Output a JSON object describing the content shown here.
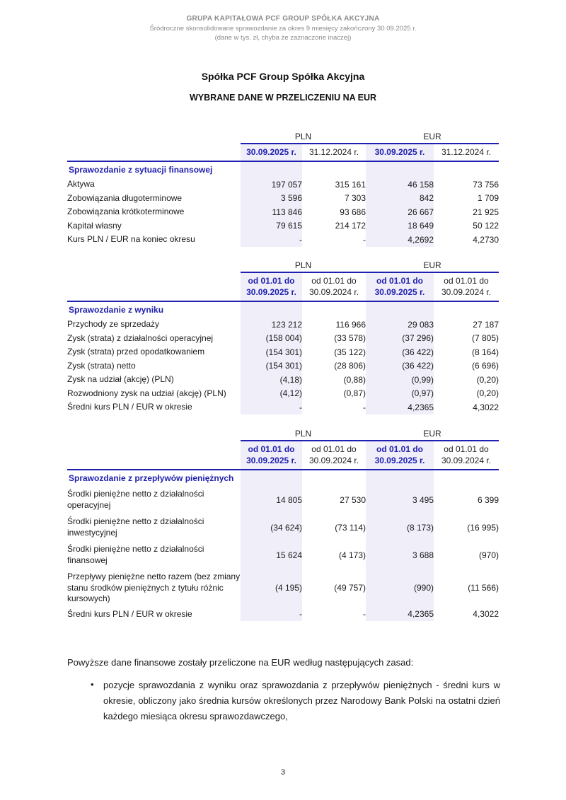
{
  "page": {
    "header": {
      "line1": "GRUPA KAPITAŁOWA PCF GROUP SPÓŁKA AKCYJNA",
      "line2": "Śródroczne skonsolidowane sprawozdanie za okres 9 miesięcy zakończony 30.09.2025 r.",
      "line3": "(dane w tys. zł, chyba że zaznaczone inaczej)"
    },
    "title": "Spółka PCF Group Spółka Akcyjna",
    "subtitle": "WYBRANE DANE W PRZELICZENIU NA EUR",
    "page_number": "3"
  },
  "colors": {
    "accent_navy": "#2020b0",
    "highlight_lavender": "#efeef9",
    "header_gray": "#8a8a8a"
  },
  "tables": [
    {
      "currency_groups": [
        "PLN",
        "EUR"
      ],
      "col_headers": [
        "30.09.2025 r.",
        "31.12.2024 r.",
        "30.09.2025 r.",
        "31.12.2024 r."
      ],
      "section": "Sprawozdanie z sytuacji finansowej",
      "rows": [
        {
          "label": "Aktywa",
          "values": [
            "197 057",
            "315 161",
            "46 158",
            "73 756"
          ]
        },
        {
          "label": "Zobowiązania długoterminowe",
          "values": [
            "3 596",
            "7 303",
            "842",
            "1 709"
          ]
        },
        {
          "label": "Zobowiązania krótkoterminowe",
          "values": [
            "113 846",
            "93 686",
            "26 667",
            "21 925"
          ]
        },
        {
          "label": "Kapitał własny",
          "values": [
            "79 615",
            "214 172",
            "18 649",
            "50 122"
          ]
        },
        {
          "label": "Kurs PLN / EUR na koniec okresu",
          "values": [
            "-",
            "-",
            "4,2692",
            "4,2730"
          ]
        }
      ]
    },
    {
      "currency_groups": [
        "PLN",
        "EUR"
      ],
      "col_headers": [
        "od 01.01 do 30.09.2025 r.",
        "od 01.01 do 30.09.2024 r.",
        "od 01.01 do 30.09.2025 r.",
        "od 01.01 do 30.09.2024 r."
      ],
      "section": "Sprawozdanie z wyniku",
      "rows": [
        {
          "label": "Przychody ze sprzedaży",
          "values": [
            "123 212",
            "116 966",
            "29 083",
            "27 187"
          ]
        },
        {
          "label": "Zysk (strata) z działalności operacyjnej",
          "values": [
            "(158 004)",
            "(33 578)",
            "(37 296)",
            "(7 805)"
          ]
        },
        {
          "label": "Zysk (strata) przed opodatkowaniem",
          "values": [
            "(154 301)",
            "(35 122)",
            "(36 422)",
            "(8 164)"
          ]
        },
        {
          "label": "Zysk (strata) netto",
          "values": [
            "(154 301)",
            "(28 806)",
            "(36 422)",
            "(6 696)"
          ]
        },
        {
          "label": "Zysk na udział (akcję)  (PLN)",
          "values": [
            "(4,18)",
            "(0,88)",
            "(0,99)",
            "(0,20)"
          ]
        },
        {
          "label": "Rozwodniony zysk na udział (akcję) (PLN)",
          "values": [
            "(4,12)",
            "(0,87)",
            "(0,97)",
            "(0,20)"
          ]
        },
        {
          "label": "Średni kurs PLN / EUR w okresie",
          "values": [
            "-",
            "-",
            "4,2365",
            "4,3022"
          ]
        }
      ]
    },
    {
      "currency_groups": [
        "PLN",
        "EUR"
      ],
      "col_headers": [
        "od 01.01 do 30.09.2025 r.",
        "od 01.01 do 30.09.2024 r.",
        "od 01.01 do 30.09.2025 r.",
        "od 01.01 do 30.09.2024 r."
      ],
      "section": "Sprawozdanie z przepływów pieniężnych",
      "rows": [
        {
          "label": "Środki pieniężne netto z działalności operacyjnej",
          "values": [
            "14 805",
            "27 530",
            "3 495",
            "6 399"
          ]
        },
        {
          "label": "Środki pieniężne netto z działalności inwestycyjnej",
          "values": [
            "(34 624)",
            "(73 114)",
            "(8 173)",
            "(16 995)"
          ]
        },
        {
          "label": "Środki pieniężne netto z działalności finansowej",
          "values": [
            "15 624",
            "(4 173)",
            "3 688",
            "(970)"
          ]
        },
        {
          "label": "Przepływy pieniężne netto razem (bez zmiany stanu środków pieniężnych z tytułu różnic kursowych)",
          "values": [
            "(4 195)",
            "(49 757)",
            "(990)",
            "(11 566)"
          ]
        },
        {
          "label": "Średni kurs PLN / EUR w okresie",
          "values": [
            "-",
            "-",
            "4,2365",
            "4,3022"
          ]
        }
      ]
    }
  ],
  "notes": {
    "intro": "Powyższe dane finansowe zostały przeliczone na EUR według następujących zasad:",
    "bullet_glyph": "•",
    "bullets": [
      "pozycje sprawozdania z wyniku oraz sprawozdania z przepływów pieniężnych - średni kurs w okresie, obliczony jako średnia kursów określonych przez Narodowy Bank Polski na ostatni dzień każdego miesiąca okresu sprawozdawczego,"
    ]
  }
}
